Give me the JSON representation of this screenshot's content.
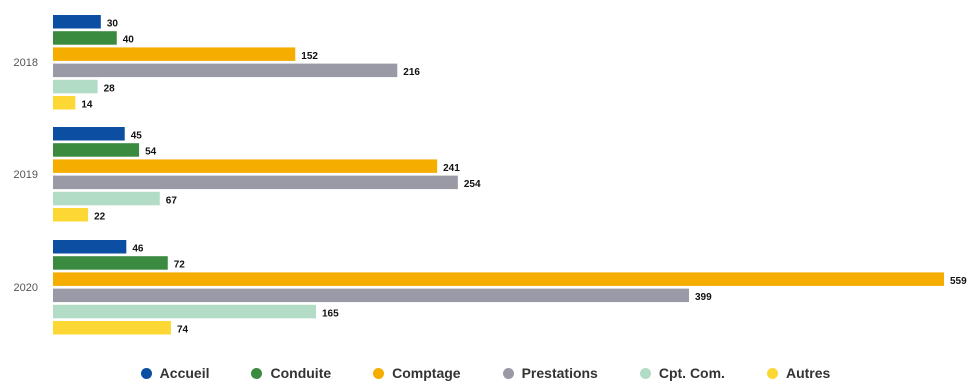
{
  "chart_data": {
    "type": "bar",
    "orientation": "horizontal",
    "categories": [
      "2018",
      "2019",
      "2020"
    ],
    "series": [
      {
        "name": "Accueil",
        "color": "#0b4ea2",
        "values": [
          30,
          45,
          46
        ]
      },
      {
        "name": "Conduite",
        "color": "#3a8a3f",
        "values": [
          40,
          54,
          72
        ]
      },
      {
        "name": "Comptage",
        "color": "#f5ad00",
        "values": [
          152,
          241,
          559
        ]
      },
      {
        "name": "Prestations",
        "color": "#9a9aa6",
        "values": [
          216,
          254,
          399
        ]
      },
      {
        "name": "Cpt. Com.",
        "color": "#b2dcc6",
        "values": [
          28,
          67,
          165
        ]
      },
      {
        "name": "Autres",
        "color": "#fdd835",
        "values": [
          14,
          22,
          74
        ]
      }
    ],
    "xlim": [
      0,
      559
    ],
    "data_labels": true,
    "legend_position": "bottom",
    "grid": false
  }
}
